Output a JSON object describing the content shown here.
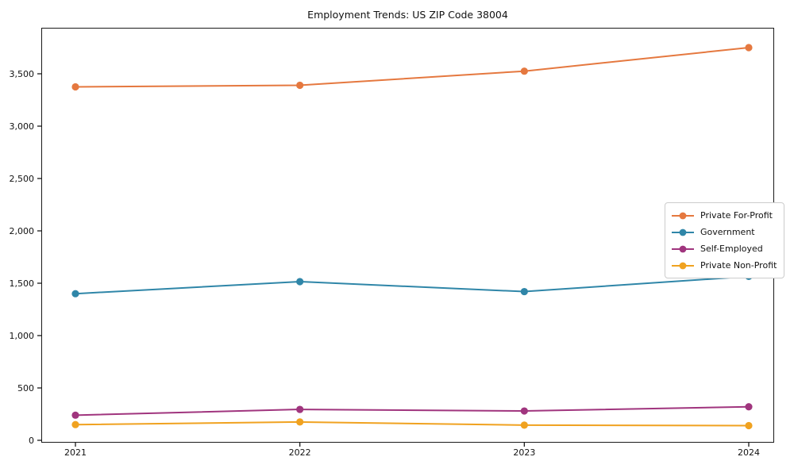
{
  "chart_data": {
    "type": "line",
    "title": "Employment Trends: US ZIP Code 38004",
    "categories": [
      "2021",
      "2022",
      "2023",
      "2024"
    ],
    "series": [
      {
        "name": "Private For-Profit",
        "color": "#E5783F",
        "values": [
          3375,
          3390,
          3525,
          3750
        ]
      },
      {
        "name": "Government",
        "color": "#2F86A8",
        "values": [
          1400,
          1515,
          1420,
          1565
        ]
      },
      {
        "name": "Self-Employed",
        "color": "#A0357E",
        "values": [
          240,
          295,
          280,
          320
        ]
      },
      {
        "name": "Private Non-Profit",
        "color": "#F0A220",
        "values": [
          150,
          175,
          145,
          140
        ]
      }
    ],
    "xlabel": "",
    "ylabel": "",
    "yticks": [
      0,
      500,
      1000,
      1500,
      2000,
      2500,
      3000,
      3500
    ],
    "ytick_labels": [
      "0",
      "500",
      "1,000",
      "1,500",
      "2,000",
      "2,500",
      "3,000",
      "3,500"
    ],
    "ylim": [
      -25,
      3940
    ],
    "grid": false,
    "marker": "circle",
    "legend_position": "center right",
    "axis_color": "#1a1a1a",
    "text_color": "#111111"
  }
}
